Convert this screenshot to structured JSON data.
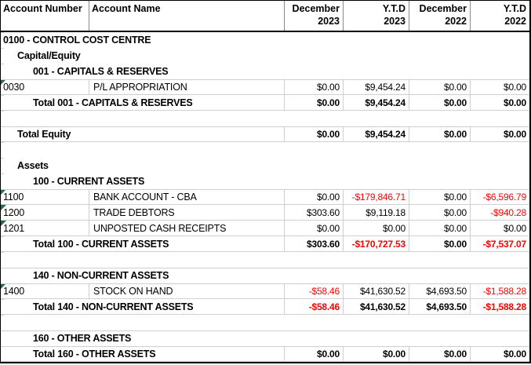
{
  "colors": {
    "negative": "#FF0000",
    "text": "#000000",
    "gridline": "#D0CECE",
    "header_divider": "#8A8A8A",
    "table_border": "#000000",
    "flag_green": "#1E7145",
    "background": "#FFFFFF"
  },
  "header": {
    "columns": [
      {
        "id": "account-number",
        "label": "Account Number",
        "line2": "",
        "align": "left"
      },
      {
        "id": "account-name",
        "label": "Account Name",
        "line2": "",
        "align": "left"
      },
      {
        "id": "dec-2023",
        "label": "December",
        "line2": "2023",
        "align": "right"
      },
      {
        "id": "ytd-2023",
        "label": "Y.T.D",
        "line2": "2023",
        "align": "right"
      },
      {
        "id": "dec-2022",
        "label": "December",
        "line2": "2022",
        "align": "right"
      },
      {
        "id": "ytd-2022",
        "label": "Y.T.D",
        "line2": "2022",
        "align": "right"
      }
    ]
  },
  "rows": [
    {
      "type": "group",
      "indent": 0,
      "label": "0100 - CONTROL COST CENTRE"
    },
    {
      "type": "group",
      "indent": 1,
      "label": "Capital/Equity"
    },
    {
      "type": "group",
      "indent": 2,
      "label": "001 - CAPITALS & RESERVES"
    },
    {
      "type": "detail",
      "number": "0030",
      "flag": true,
      "name": "P/L APPROPRIATION",
      "values": [
        "$0.00",
        "$9,454.24",
        "$0.00",
        "$0.00"
      ]
    },
    {
      "type": "total",
      "indent": 2,
      "label": "Total 001 - CAPITALS & RESERVES",
      "values": [
        "$0.00",
        "$9,454.24",
        "$0.00",
        "$0.00"
      ]
    },
    {
      "type": "blank"
    },
    {
      "type": "total",
      "indent": 1,
      "label": "Total Equity",
      "values": [
        "$0.00",
        "$9,454.24",
        "$0.00",
        "$0.00"
      ]
    },
    {
      "type": "blank"
    },
    {
      "type": "group",
      "indent": 1,
      "label": "Assets"
    },
    {
      "type": "group",
      "indent": 2,
      "label": "100 - CURRENT ASSETS"
    },
    {
      "type": "detail",
      "number": "1100",
      "flag": true,
      "name": "BANK ACCOUNT - CBA",
      "values": [
        "$0.00",
        "-$179,846.71",
        "$0.00",
        "-$6,596.79"
      ]
    },
    {
      "type": "detail",
      "number": "1200",
      "flag": true,
      "name": "TRADE DEBTORS",
      "values": [
        "$303.60",
        "$9,119.18",
        "$0.00",
        "-$940.28"
      ]
    },
    {
      "type": "detail",
      "number": "1201",
      "flag": true,
      "name": "UNPOSTED CASH RECEIPTS",
      "values": [
        "$0.00",
        "$0.00",
        "$0.00",
        "$0.00"
      ]
    },
    {
      "type": "total",
      "indent": 2,
      "label": "Total 100 - CURRENT ASSETS",
      "values": [
        "$303.60",
        "-$170,727.53",
        "$0.00",
        "-$7,537.07"
      ]
    },
    {
      "type": "blank"
    },
    {
      "type": "group",
      "indent": 2,
      "label": "140 - NON-CURRENT ASSETS",
      "line_top": true
    },
    {
      "type": "detail",
      "number": "1400",
      "flag": true,
      "name": "STOCK ON HAND",
      "values": [
        "-$58.46",
        "$41,630.52",
        "$4,693.50",
        "-$1,588.28"
      ]
    },
    {
      "type": "total",
      "indent": 2,
      "label": "Total 140 - NON-CURRENT ASSETS",
      "values": [
        "-$58.46",
        "$41,630.52",
        "$4,693.50",
        "-$1,588.28"
      ]
    },
    {
      "type": "blank"
    },
    {
      "type": "group",
      "indent": 2,
      "label": "160 - OTHER ASSETS",
      "line_top": true
    },
    {
      "type": "total",
      "indent": 2,
      "label": "Total 160 - OTHER ASSETS",
      "values": [
        "$0.00",
        "$0.00",
        "$0.00",
        "$0.00"
      ]
    }
  ]
}
